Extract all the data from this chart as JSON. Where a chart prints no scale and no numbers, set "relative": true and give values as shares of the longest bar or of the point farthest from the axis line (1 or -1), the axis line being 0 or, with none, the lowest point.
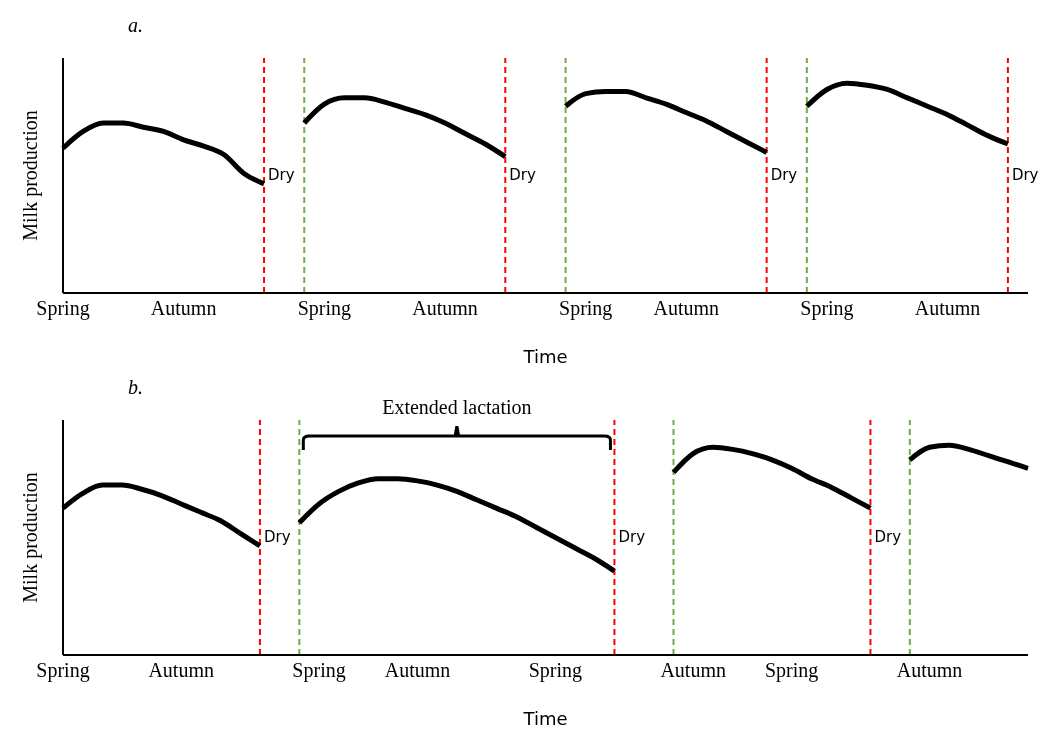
{
  "chart_data": [
    {
      "type": "line",
      "title": "a.",
      "xlabel": "Time",
      "ylabel": "Milk production",
      "relative": true,
      "tick_labels": "x",
      "grid": "x",
      "legend": false,
      "marker": "none",
      "categories": [
        "Spring",
        null,
        null,
        null,
        null,
        null,
        "Autumn",
        null,
        null,
        null,
        null,
        null,
        null,
        "Spring",
        null,
        null,
        null,
        null,
        null,
        "Autumn",
        null,
        null,
        null,
        null,
        null,
        null,
        "Spring",
        null,
        null,
        null,
        null,
        "Autumn",
        null,
        null,
        null,
        null,
        null,
        null,
        "Spring",
        null,
        null,
        null,
        null,
        null,
        "Autumn",
        null,
        null,
        null,
        null
      ],
      "series": [
        {
          "color": "#000000",
          "values": [
            0.69,
            0.77,
            0.81,
            0.81,
            0.79,
            0.77,
            0.73,
            0.7,
            0.66,
            0.57,
            0.52,
            null,
            0.81,
            0.9,
            0.93,
            0.93,
            0.91,
            0.88,
            0.85,
            0.81,
            0.76,
            0.71,
            0.65,
            null,
            null,
            0.89,
            0.95,
            0.96,
            0.96,
            0.93,
            0.9,
            0.86,
            0.82,
            0.77,
            0.72,
            0.67,
            null,
            0.89,
            0.97,
            1.0,
            0.99,
            0.97,
            0.93,
            0.89,
            0.85,
            0.8,
            0.75,
            0.71,
            null
          ]
        }
      ],
      "annotations": [
        "Dry",
        "Dry",
        "Dry",
        "Dry"
      ]
    },
    {
      "type": "line",
      "title": "b.",
      "xlabel": "Time",
      "ylabel": "Milk production",
      "relative": true,
      "tick_labels": "x",
      "grid": "x",
      "legend": false,
      "marker": "none",
      "categories": [
        "Spring",
        null,
        null,
        null,
        null,
        null,
        "Autumn",
        null,
        null,
        null,
        null,
        null,
        null,
        "Spring",
        null,
        null,
        null,
        null,
        "Autumn",
        null,
        null,
        null,
        null,
        null,
        null,
        "Spring",
        null,
        null,
        null,
        null,
        null,
        null,
        "Autumn",
        null,
        null,
        null,
        null,
        "Spring",
        null,
        null,
        null,
        null,
        null,
        null,
        "Autumn",
        null,
        null,
        null,
        null,
        null
      ],
      "series": [
        {
          "color": "#000000",
          "values": [
            0.7,
            0.77,
            0.81,
            0.81,
            0.79,
            0.76,
            0.72,
            0.68,
            0.64,
            0.58,
            0.52,
            null,
            0.63,
            0.72,
            0.78,
            0.82,
            0.84,
            0.84,
            0.83,
            0.81,
            0.78,
            0.74,
            0.7,
            0.66,
            0.61,
            0.56,
            0.51,
            0.46,
            0.4,
            null,
            null,
            0.87,
            0.96,
            0.99,
            0.98,
            0.96,
            0.93,
            0.89,
            0.84,
            0.8,
            0.75,
            0.7,
            null,
            0.93,
            0.99,
            1.0,
            0.98,
            0.95,
            0.92,
            0.89
          ]
        }
      ],
      "annotations": [
        "Extended lactation",
        "Dry",
        "Dry",
        "Dry"
      ]
    }
  ]
}
